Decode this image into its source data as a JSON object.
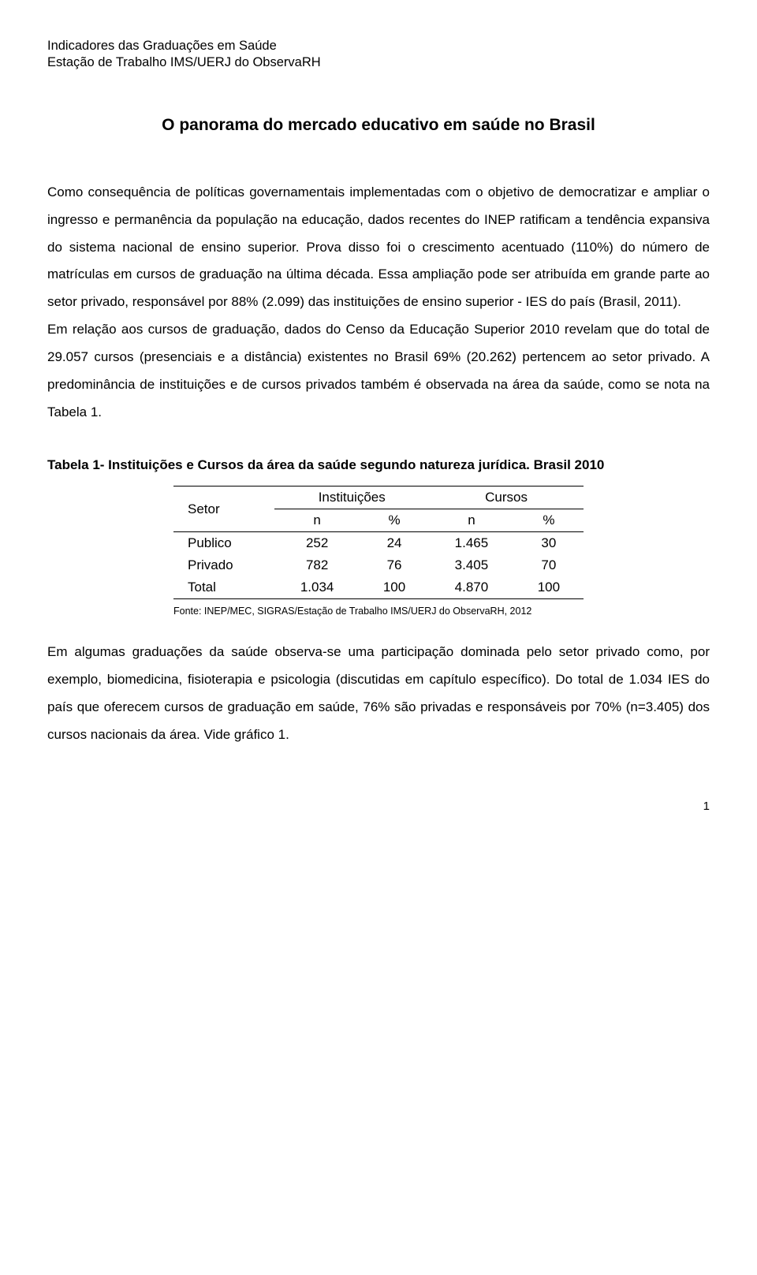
{
  "header": {
    "line1": "Indicadores das Graduações em Saúde",
    "line2": "Estação de Trabalho IMS/UERJ do ObservaRH"
  },
  "title": "O panorama do mercado educativo em saúde no Brasil",
  "paragraphs": {
    "p1": "Como consequência de políticas governamentais implementadas com o objetivo de democratizar e ampliar o ingresso e permanência da população na educação, dados recentes do INEP ratificam a tendência expansiva do sistema nacional de ensino superior. Prova disso foi o crescimento acentuado (110%) do número de matrículas em cursos de graduação na última década. Essa ampliação pode ser atribuída em grande parte ao setor privado, responsável por 88% (2.099) das instituições de ensino superior - IES do país (Brasil, 2011).",
    "p2": "Em relação aos cursos de graduação, dados do Censo da Educação Superior 2010 revelam que do total de 29.057 cursos (presenciais e a distância) existentes no Brasil 69% (20.262) pertencem ao setor privado. A predominância de instituições e de cursos privados também é observada na área da saúde, como se nota na Tabela 1.",
    "p3": "Em algumas graduações da saúde observa-se uma participação dominada pelo setor privado como, por exemplo, biomedicina, fisioterapia e psicologia (discutidas em capítulo específico). Do total de 1.034 IES do país que oferecem cursos de graduação em saúde, 76% são privadas e responsáveis por 70% (n=3.405) dos cursos nacionais da área. Vide gráfico 1."
  },
  "table": {
    "title": "Tabela 1- Instituições e Cursos da área da saúde segundo natureza jurídica. Brasil 2010",
    "row_header_label": "Setor",
    "group_headers": [
      "Instituições",
      "Cursos"
    ],
    "col_headers": [
      "n",
      "%",
      "n",
      "%"
    ],
    "rows": [
      {
        "label": "Publico",
        "cells": [
          "252",
          "24",
          "1.465",
          "30"
        ]
      },
      {
        "label": "Privado",
        "cells": [
          "782",
          "76",
          "3.405",
          "70"
        ]
      },
      {
        "label": "Total",
        "cells": [
          "1.034",
          "100",
          "4.870",
          "100"
        ]
      }
    ],
    "source": "Fonte: INEP/MEC, SIGRAS/Estação de Trabalho IMS/UERJ do ObservaRH, 2012",
    "col_widths": [
      "120px",
      "100px",
      "100px",
      "100px",
      "100px"
    ],
    "border_color": "#000000",
    "font_size_pt": 13
  },
  "page_number": "1",
  "style": {
    "background_color": "#ffffff",
    "text_color": "#000000",
    "body_font_size_pt": 13,
    "title_font_size_pt": 16,
    "line_height": 2.05,
    "font_family": "Arial"
  }
}
